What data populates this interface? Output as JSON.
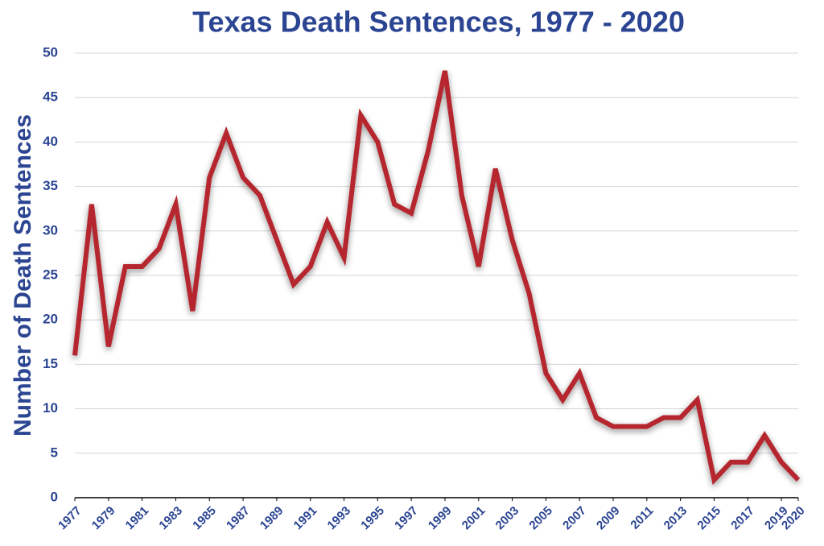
{
  "chart_data": {
    "type": "line",
    "title": "Texas Death Sentences, 1977 - 2020",
    "y_label": "Number of Death Sentences",
    "x": [
      1977,
      1978,
      1979,
      1980,
      1981,
      1982,
      1983,
      1984,
      1985,
      1986,
      1987,
      1988,
      1989,
      1990,
      1991,
      1992,
      1993,
      1994,
      1995,
      1996,
      1997,
      1998,
      1999,
      2000,
      2001,
      2002,
      2003,
      2004,
      2005,
      2006,
      2007,
      2008,
      2009,
      2010,
      2011,
      2012,
      2013,
      2014,
      2015,
      2016,
      2017,
      2018,
      2019,
      2020
    ],
    "values": [
      16,
      33,
      17,
      26,
      26,
      28,
      33,
      21,
      36,
      41,
      36,
      34,
      29,
      24,
      26,
      31,
      27,
      43,
      40,
      33,
      32,
      39,
      48,
      34,
      26,
      37,
      29,
      23,
      14,
      11,
      14,
      9,
      8,
      8,
      8,
      9,
      9,
      11,
      2,
      4,
      4,
      7,
      4,
      2
    ],
    "color": "#b5252d",
    "xlim": [
      1977,
      2020
    ],
    "xticks": [
      1977,
      1979,
      1981,
      1983,
      1985,
      1987,
      1989,
      1991,
      1993,
      1995,
      1997,
      1999,
      2001,
      2003,
      2005,
      2007,
      2009,
      2011,
      2013,
      2015,
      2017,
      2019,
      2020
    ],
    "ylim": [
      0,
      50
    ],
    "yticks": [
      0,
      5,
      10,
      15,
      20,
      25,
      30,
      35,
      40,
      45,
      50
    ],
    "grid": true
  }
}
